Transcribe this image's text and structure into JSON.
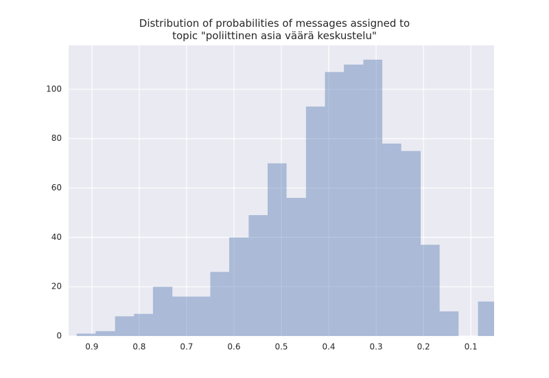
{
  "chart_data": {
    "type": "histogram",
    "title": "Distribution of probabilities of messages assigned to\ntopic \"poliittinen asia väärä keskustelu\"",
    "bins": [
      0.045,
      0.085,
      0.126,
      0.166,
      0.206,
      0.247,
      0.287,
      0.327,
      0.368,
      0.408,
      0.448,
      0.489,
      0.529,
      0.569,
      0.61,
      0.65,
      0.69,
      0.73,
      0.771,
      0.811,
      0.851,
      0.892,
      0.932
    ],
    "values": [
      14,
      0,
      10,
      37,
      75,
      78,
      112,
      110,
      107,
      93,
      56,
      70,
      49,
      40,
      26,
      16,
      16,
      20,
      9,
      8,
      2,
      1
    ],
    "color": "#4c72b0",
    "xlim": [
      0.949,
      0.051
    ],
    "xticks": [
      0.9,
      0.8,
      0.7,
      0.6,
      0.5,
      0.4,
      0.3,
      0.2,
      0.1
    ],
    "ylim": [
      0,
      117.8
    ],
    "yticks": [
      0,
      20,
      40,
      60,
      80,
      100
    ],
    "grid": true
  }
}
